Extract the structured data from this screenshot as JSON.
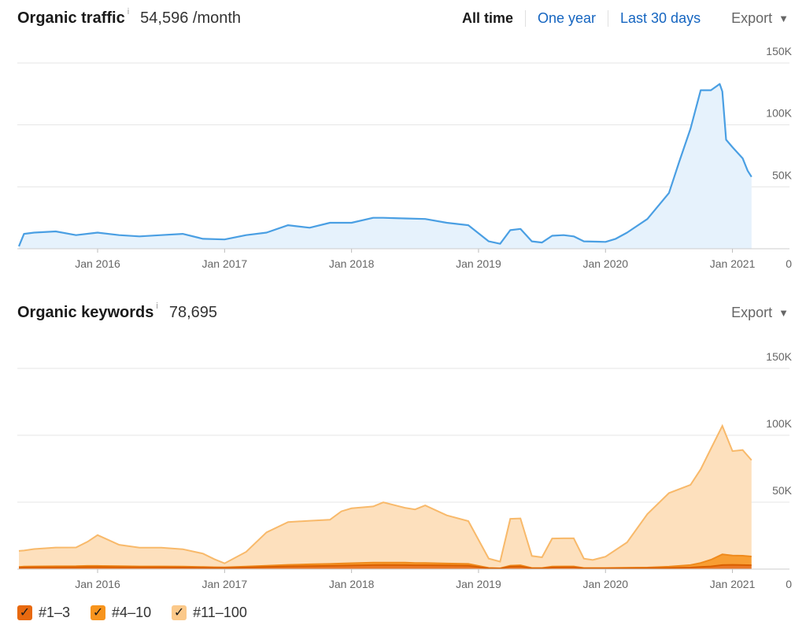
{
  "traffic": {
    "title": "Organic traffic",
    "info": "i",
    "value": "54,596 /month",
    "ranges": [
      "All time",
      "One year",
      "Last 30 days"
    ],
    "active_range": "All time",
    "export_label": "Export",
    "caret": "▼"
  },
  "keywords": {
    "title": "Organic keywords",
    "info": "i",
    "value": "78,695",
    "export_label": "Export",
    "caret": "▼"
  },
  "legend": {
    "items": [
      {
        "label": "#1–3",
        "color": "#e8690f"
      },
      {
        "label": "#4–10",
        "color": "#f7941d"
      },
      {
        "label": "#11–100",
        "color": "#fbc98a"
      }
    ],
    "check": "✓"
  },
  "colors": {
    "traffic_line": "#4a9fe3",
    "traffic_fill": "#e6f2fc",
    "grid": "#e5e5e5",
    "tick": "#666666"
  },
  "chart_data": [
    {
      "type": "area",
      "x_unit": "year (decimal)",
      "x_tick_labels": [
        "Jan 2016",
        "Jan 2017",
        "Jan 2018",
        "Jan 2019",
        "Jan 2020",
        "Jan 2021"
      ],
      "x_tick_values": [
        2016,
        2017,
        2018,
        2019,
        2020,
        2021
      ],
      "xlim": [
        2015.38,
        2021.17
      ],
      "ylim": [
        0,
        150000
      ],
      "y_tick_labels": [
        "0",
        "50K",
        "100K",
        "150K"
      ],
      "y_tick_values": [
        0,
        50000,
        100000,
        150000
      ],
      "grid": true,
      "series": [
        {
          "x": [
            2015.38,
            2015.42,
            2015.5,
            2015.67,
            2015.83,
            2016.0,
            2016.17,
            2016.33,
            2016.5,
            2016.67,
            2016.83,
            2017.0,
            2017.17,
            2017.33,
            2017.5,
            2017.67,
            2017.83,
            2018.0,
            2018.17,
            2018.25,
            2018.42,
            2018.58,
            2018.75,
            2018.92,
            2019.08,
            2019.17,
            2019.25,
            2019.33,
            2019.42,
            2019.5,
            2019.58,
            2019.67,
            2019.75,
            2019.83,
            2020.0,
            2020.08,
            2020.17,
            2020.33,
            2020.5,
            2020.58,
            2020.67,
            2020.75,
            2020.83,
            2020.9,
            2020.92,
            2020.95,
            2021.0,
            2021.08,
            2021.12,
            2021.15
          ],
          "y": [
            2000,
            12000,
            13000,
            14000,
            11000,
            13000,
            11000,
            10000,
            11000,
            12000,
            8000,
            7500,
            11000,
            13000,
            19000,
            17000,
            21000,
            21000,
            25000,
            25000,
            24500,
            24000,
            21000,
            19000,
            6000,
            4000,
            15000,
            16000,
            6000,
            5000,
            10500,
            11000,
            10000,
            6000,
            5500,
            8000,
            13000,
            24000,
            45000,
            70000,
            97000,
            128000,
            128000,
            133000,
            127000,
            88000,
            82000,
            73000,
            63000,
            58000
          ]
        }
      ]
    },
    {
      "type": "area",
      "stacked": true,
      "x_unit": "year (decimal)",
      "x_tick_labels": [
        "Jan 2016",
        "Jan 2017",
        "Jan 2018",
        "Jan 2019",
        "Jan 2020",
        "Jan 2021"
      ],
      "x_tick_values": [
        2016,
        2017,
        2018,
        2019,
        2020,
        2021
      ],
      "xlim": [
        2015.38,
        2021.17
      ],
      "ylim": [
        0,
        150000
      ],
      "y_tick_labels": [
        "0",
        "50K",
        "100K",
        "150K"
      ],
      "y_tick_values": [
        0,
        50000,
        100000,
        150000
      ],
      "grid": true,
      "x": [
        2015.38,
        2015.42,
        2015.5,
        2015.67,
        2015.83,
        2015.92,
        2016.0,
        2016.17,
        2016.33,
        2016.5,
        2016.67,
        2016.83,
        2016.92,
        2017.0,
        2017.17,
        2017.33,
        2017.5,
        2017.67,
        2017.83,
        2017.92,
        2018.0,
        2018.17,
        2018.25,
        2018.42,
        2018.5,
        2018.58,
        2018.75,
        2018.92,
        2019.08,
        2019.17,
        2019.25,
        2019.33,
        2019.42,
        2019.5,
        2019.58,
        2019.67,
        2019.75,
        2019.83,
        2019.9,
        2020.0,
        2020.17,
        2020.33,
        2020.5,
        2020.67,
        2020.75,
        2020.83,
        2020.92,
        2021.0,
        2021.08,
        2021.15
      ],
      "series": [
        {
          "name": "#1–3",
          "values": [
            1000,
            1200,
            1300,
            1300,
            1400,
            1500,
            1500,
            1400,
            1300,
            1300,
            1200,
            1000,
            900,
            800,
            1200,
            1600,
            2000,
            2200,
            2400,
            2600,
            2700,
            3000,
            3100,
            3000,
            2900,
            2900,
            2700,
            2500,
            600,
            400,
            1800,
            2000,
            500,
            500,
            1200,
            1300,
            1300,
            500,
            500,
            500,
            600,
            700,
            900,
            1200,
            1600,
            2000,
            3000,
            3200,
            3000,
            2900
          ]
        },
        {
          "name": "#4–10",
          "values": [
            600,
            700,
            700,
            800,
            800,
            900,
            900,
            800,
            700,
            700,
            700,
            600,
            500,
            500,
            700,
            900,
            1200,
            1400,
            1500,
            1600,
            1700,
            1800,
            1800,
            1800,
            1700,
            1700,
            1500,
            1400,
            300,
            200,
            800,
            900,
            300,
            300,
            700,
            700,
            700,
            300,
            300,
            300,
            400,
            500,
            900,
            1800,
            3000,
            5000,
            8000,
            7000,
            7000,
            6500
          ]
        },
        {
          "name": "#11–100",
          "values": [
            12000,
            12000,
            13000,
            14000,
            14000,
            18000,
            23000,
            16000,
            14000,
            14000,
            13000,
            10000,
            6000,
            3000,
            11000,
            25000,
            32000,
            32500,
            33000,
            39000,
            41000,
            42000,
            45000,
            41000,
            40000,
            43000,
            36000,
            32000,
            7000,
            5000,
            35000,
            35000,
            9000,
            8000,
            21000,
            21000,
            21000,
            7000,
            6000,
            8500,
            19000,
            40000,
            55000,
            60000,
            70000,
            83000,
            96000,
            78000,
            79000,
            72000
          ]
        }
      ]
    }
  ]
}
